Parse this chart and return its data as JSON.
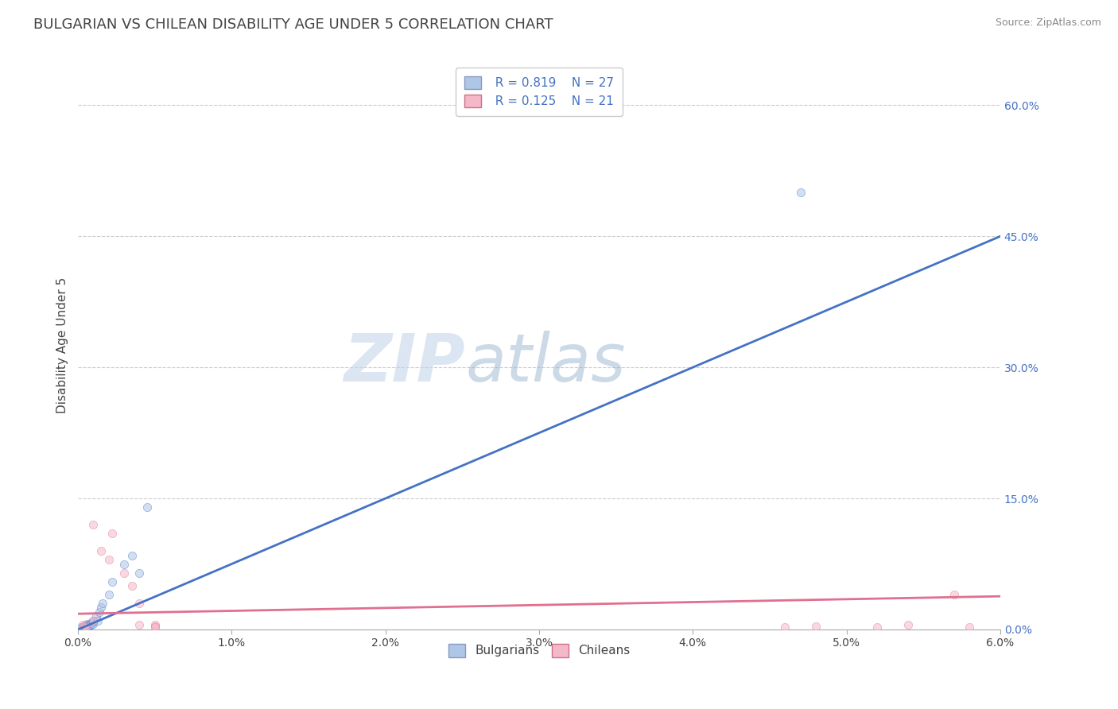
{
  "title": "BULGARIAN VS CHILEAN DISABILITY AGE UNDER 5 CORRELATION CHART",
  "source": "Source: ZipAtlas.com",
  "ylabel": "Disability Age Under 5",
  "xlim": [
    0.0,
    0.06
  ],
  "ylim": [
    0.0,
    0.65
  ],
  "xticks": [
    0.0,
    0.01,
    0.02,
    0.03,
    0.04,
    0.05,
    0.06
  ],
  "xtick_labels": [
    "0.0%",
    "1.0%",
    "2.0%",
    "3.0%",
    "4.0%",
    "5.0%",
    "6.0%"
  ],
  "ytick_positions": [
    0.0,
    0.15,
    0.3,
    0.45,
    0.6
  ],
  "ytick_labels": [
    "0.0%",
    "15.0%",
    "30.0%",
    "45.0%",
    "60.0%"
  ],
  "grid_color": "#cccccc",
  "background_color": "#ffffff",
  "bulgarian_color": "#aec6e8",
  "chilean_color": "#f5b8c8",
  "blue_line_color": "#4472c4",
  "pink_line_color": "#e07090",
  "legend_R_bulgarian": "R = 0.819",
  "legend_N_bulgarian": "N = 27",
  "legend_R_chilean": "R = 0.125",
  "legend_N_chilean": "N = 21",
  "title_color": "#444444",
  "axis_label_color": "#444444",
  "tick_color_y": "#4472c4",
  "tick_color_x": "#444444",
  "watermark_zip": "ZIP",
  "watermark_atlas": "atlas",
  "bulgarian_x": [
    0.0002,
    0.0003,
    0.0004,
    0.0005,
    0.0005,
    0.0006,
    0.0006,
    0.0007,
    0.0007,
    0.0008,
    0.0008,
    0.0009,
    0.001,
    0.001,
    0.001,
    0.0012,
    0.0013,
    0.0014,
    0.0015,
    0.0016,
    0.002,
    0.0022,
    0.003,
    0.0035,
    0.004,
    0.0045,
    0.047
  ],
  "bulgarian_y": [
    0.003,
    0.003,
    0.004,
    0.005,
    0.003,
    0.006,
    0.004,
    0.005,
    0.004,
    0.007,
    0.005,
    0.006,
    0.008,
    0.006,
    0.01,
    0.015,
    0.01,
    0.02,
    0.025,
    0.03,
    0.04,
    0.055,
    0.075,
    0.085,
    0.065,
    0.14,
    0.5
  ],
  "chilean_x": [
    0.0003,
    0.0004,
    0.0005,
    0.001,
    0.001,
    0.0015,
    0.002,
    0.0022,
    0.003,
    0.0035,
    0.004,
    0.004,
    0.005,
    0.005,
    0.005,
    0.046,
    0.048,
    0.052,
    0.054,
    0.057,
    0.058
  ],
  "chilean_y": [
    0.005,
    0.004,
    0.003,
    0.01,
    0.12,
    0.09,
    0.08,
    0.11,
    0.065,
    0.05,
    0.03,
    0.005,
    0.004,
    0.005,
    0.003,
    0.003,
    0.004,
    0.003,
    0.005,
    0.04,
    0.003
  ],
  "blue_line_x0": 0.0,
  "blue_line_y0": 0.0,
  "blue_line_x1": 0.06,
  "blue_line_y1": 0.45,
  "pink_line_x0": 0.0,
  "pink_line_y0": 0.018,
  "pink_line_x1": 0.06,
  "pink_line_y1": 0.038,
  "marker_size": 55,
  "marker_alpha": 0.55,
  "title_fontsize": 13,
  "label_fontsize": 11,
  "tick_fontsize": 10,
  "legend_fontsize": 11,
  "source_fontsize": 9
}
